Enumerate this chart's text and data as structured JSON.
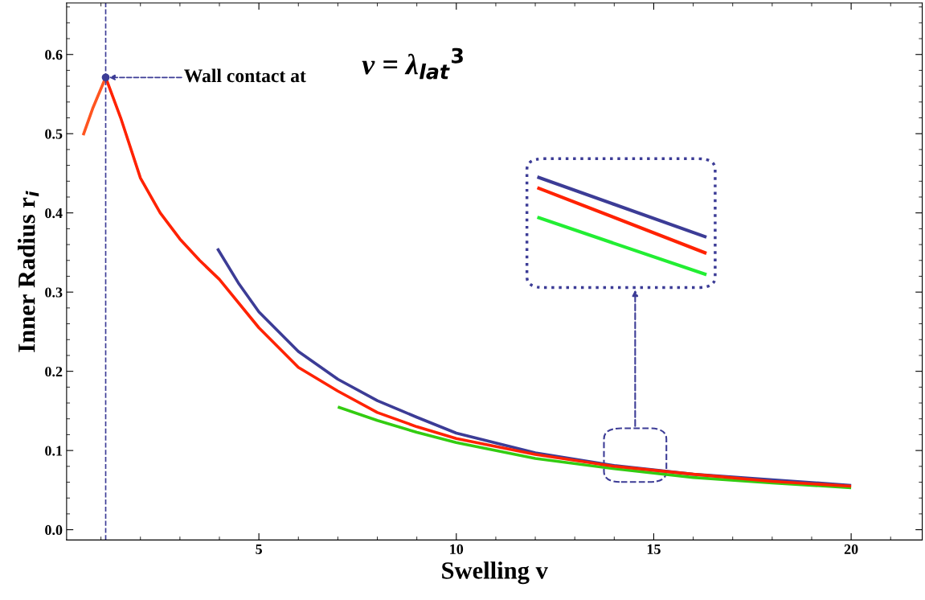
{
  "chart_data": {
    "type": "line",
    "xlabel": "Swelling v",
    "ylabel": "Inner Radius r$_{i}$",
    "xlim": [
      0.13,
      21.8
    ],
    "ylim": [
      -0.013,
      0.665
    ],
    "xticks": [
      5,
      10,
      15,
      20
    ],
    "yticks": [
      {
        "value": 0,
        "label": "0.0"
      },
      0.1,
      0.2,
      0.3,
      0.4,
      0.5,
      0.6
    ],
    "grid": false,
    "legend": false,
    "series": [
      {
        "color": "#ff5520",
        "x": [
          0.55,
          0.8,
          1.12
        ],
        "values": [
          0.498,
          0.533,
          0.571
        ]
      },
      {
        "color": "#ff2200",
        "x": [
          1.12,
          1.5,
          2,
          2.5,
          3,
          3.5,
          4,
          5,
          6,
          7,
          8,
          9,
          10,
          12,
          14,
          16,
          18,
          20
        ],
        "values": [
          0.571,
          0.52,
          0.444,
          0.4,
          0.367,
          0.34,
          0.316,
          0.255,
          0.205,
          0.175,
          0.148,
          0.13,
          0.115,
          0.095,
          0.08,
          0.07,
          0.061,
          0.055
        ]
      },
      {
        "color": "#3c3c96",
        "x": [
          3.95,
          4.5,
          5,
          6,
          7,
          8,
          9,
          10,
          12,
          14,
          16,
          18,
          20
        ],
        "values": [
          0.355,
          0.31,
          0.275,
          0.225,
          0.19,
          0.163,
          0.142,
          0.122,
          0.097,
          0.081,
          0.07,
          0.063,
          0.056
        ]
      },
      {
        "type": "scatter",
        "marker": "circle",
        "color": "#3c3c96",
        "x": [
          1.12
        ],
        "values": [
          0.571
        ]
      },
      {
        "color": "#33cc11",
        "x": [
          7,
          8,
          9,
          10,
          12,
          14,
          16,
          18,
          20
        ],
        "values": [
          0.155,
          0.138,
          0.123,
          0.11,
          0.09,
          0.077,
          0.066,
          0.059,
          0.053
        ]
      }
    ],
    "ref_lines": [
      {
        "axis": "x",
        "value": 1.12,
        "color": "#3c3c96",
        "line_style": "dashed"
      }
    ],
    "annotations": [
      "Wall contact at",
      "ν = λ$_{lat}$$^{3}$"
    ]
  }
}
